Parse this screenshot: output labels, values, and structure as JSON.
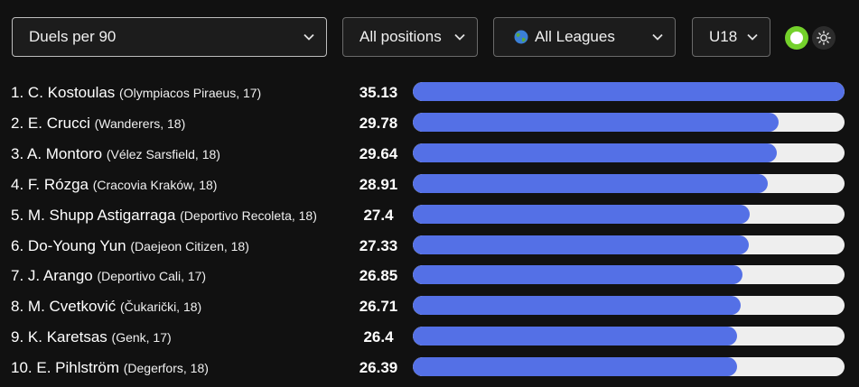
{
  "filters": {
    "metric": "Duels per 90",
    "position": "All positions",
    "league": "All Leagues",
    "age": "U18"
  },
  "icons": {
    "dropdown": "chevron-down-icon",
    "league": "globe-icon",
    "theme_toggle": "toggle-dot-icon",
    "light_mode": "sun-icon"
  },
  "colors": {
    "background": "#111111",
    "bar_fill": "#5470e6",
    "bar_track": "#eeeeee",
    "toggle_active": "#74d12b"
  },
  "scale_max": 35.13,
  "players": [
    {
      "rank": "1.",
      "name": "C. Kostoulas",
      "club": "(Olympiacos Piraeus, 17)",
      "value": "35.13"
    },
    {
      "rank": "2.",
      "name": "E. Crucci",
      "club": "(Wanderers, 18)",
      "value": "29.78"
    },
    {
      "rank": "3.",
      "name": "A. Montoro",
      "club": "(Vélez Sarsfield, 18)",
      "value": "29.64"
    },
    {
      "rank": "4.",
      "name": "F. Rózga",
      "club": "(Cracovia Kraków, 18)",
      "value": "28.91"
    },
    {
      "rank": "5.",
      "name": "M. Shupp Astigarraga",
      "club": "(Deportivo Recoleta, 18)",
      "value": "27.4"
    },
    {
      "rank": "6.",
      "name": "Do-Young Yun",
      "club": "(Daejeon Citizen, 18)",
      "value": "27.33"
    },
    {
      "rank": "7.",
      "name": "J. Arango",
      "club": "(Deportivo Cali, 17)",
      "value": "26.85"
    },
    {
      "rank": "8.",
      "name": "M. Cvetković",
      "club": "(Čukarički, 18)",
      "value": "26.71"
    },
    {
      "rank": "9.",
      "name": "K. Karetsas",
      "club": "(Genk, 17)",
      "value": "26.4"
    },
    {
      "rank": "10.",
      "name": "E. Pihlström",
      "club": "(Degerfors, 18)",
      "value": "26.39"
    }
  ]
}
